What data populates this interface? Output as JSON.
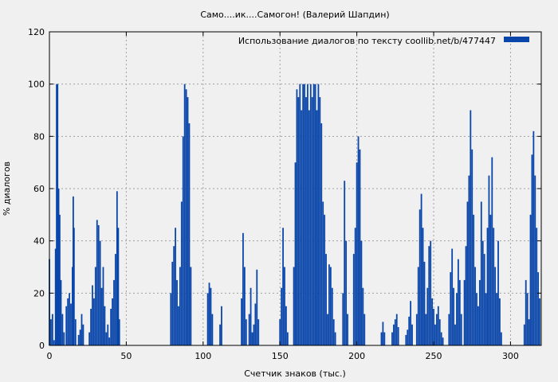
{
  "chart_data": {
    "type": "bar",
    "title": "Само....ик....Самогон! (Валерий Шапдин)",
    "xlabel": "Счетчик знаков (тыс.)",
    "ylabel": "% диалогов",
    "xlim": [
      0,
      320
    ],
    "ylim": [
      0,
      120
    ],
    "xticks": [
      0,
      50,
      100,
      150,
      200,
      250,
      300
    ],
    "yticks": [
      0,
      20,
      40,
      60,
      80,
      100,
      120
    ],
    "xtick_labels": [
      "0",
      "50",
      "100",
      "150",
      "200",
      "250",
      "300"
    ],
    "ytick_labels": [
      "0",
      "20",
      "40",
      "60",
      "80",
      "100",
      "120"
    ],
    "grid": true,
    "legend_position": "top-right",
    "series": [
      {
        "name": "Использование диалогов по тексту  coollib.net/b/477447",
        "color": "#0a46aa",
        "points": [
          [
            0,
            33
          ],
          [
            1,
            10
          ],
          [
            2,
            12
          ],
          [
            3,
            2
          ],
          [
            4,
            37
          ],
          [
            4.7,
            100
          ],
          [
            5.3,
            100
          ],
          [
            6,
            60
          ],
          [
            6.7,
            50
          ],
          [
            7.5,
            25
          ],
          [
            8.5,
            12
          ],
          [
            9.5,
            5
          ],
          [
            11,
            15
          ],
          [
            12,
            18
          ],
          [
            13,
            20
          ],
          [
            14,
            16
          ],
          [
            15,
            30
          ],
          [
            15.5,
            57
          ],
          [
            16,
            45
          ],
          [
            17,
            10
          ],
          [
            19,
            4
          ],
          [
            20,
            6
          ],
          [
            21,
            12
          ],
          [
            22,
            8
          ],
          [
            26,
            5
          ],
          [
            27,
            14
          ],
          [
            28,
            23
          ],
          [
            29,
            18
          ],
          [
            30,
            30
          ],
          [
            31,
            48
          ],
          [
            32,
            46
          ],
          [
            33,
            40
          ],
          [
            34,
            22
          ],
          [
            35,
            30
          ],
          [
            36,
            15
          ],
          [
            37,
            5
          ],
          [
            38,
            8
          ],
          [
            39,
            3
          ],
          [
            40,
            14
          ],
          [
            41,
            18
          ],
          [
            42,
            25
          ],
          [
            43,
            35
          ],
          [
            44,
            59
          ],
          [
            44.8,
            45
          ],
          [
            45.5,
            10
          ],
          [
            79,
            20
          ],
          [
            80,
            32
          ],
          [
            81,
            38
          ],
          [
            82,
            45
          ],
          [
            83,
            25
          ],
          [
            84,
            15
          ],
          [
            85,
            30
          ],
          [
            86,
            55
          ],
          [
            87,
            80
          ],
          [
            88,
            100
          ],
          [
            89,
            98
          ],
          [
            90,
            95
          ],
          [
            91,
            85
          ],
          [
            92,
            30
          ],
          [
            103,
            20
          ],
          [
            104,
            24
          ],
          [
            105,
            22
          ],
          [
            106,
            12
          ],
          [
            111,
            8
          ],
          [
            112,
            15
          ],
          [
            125,
            18
          ],
          [
            126,
            43
          ],
          [
            127,
            30
          ],
          [
            128,
            10
          ],
          [
            130,
            12
          ],
          [
            131,
            22
          ],
          [
            132,
            5
          ],
          [
            133,
            8
          ],
          [
            134,
            16
          ],
          [
            135,
            29
          ],
          [
            136,
            10
          ],
          [
            150,
            10
          ],
          [
            151,
            22
          ],
          [
            152,
            45
          ],
          [
            153,
            30
          ],
          [
            154,
            15
          ],
          [
            155,
            5
          ],
          [
            159,
            30
          ],
          [
            160,
            70
          ],
          [
            161,
            98
          ],
          [
            162,
            95
          ],
          [
            163,
            100
          ],
          [
            164,
            90
          ],
          [
            165,
            100
          ],
          [
            166,
            100
          ],
          [
            167,
            95
          ],
          [
            168,
            100
          ],
          [
            169,
            90
          ],
          [
            170,
            100
          ],
          [
            171,
            95
          ],
          [
            172,
            100
          ],
          [
            173,
            100
          ],
          [
            174,
            90
          ],
          [
            175,
            100
          ],
          [
            176,
            95
          ],
          [
            177,
            85
          ],
          [
            178,
            55
          ],
          [
            179,
            50
          ],
          [
            180,
            35
          ],
          [
            181,
            12
          ],
          [
            182,
            31
          ],
          [
            183,
            30
          ],
          [
            184,
            22
          ],
          [
            185,
            10
          ],
          [
            186,
            5
          ],
          [
            191,
            20
          ],
          [
            192,
            63
          ],
          [
            193,
            40
          ],
          [
            194,
            12
          ],
          [
            198,
            35
          ],
          [
            199,
            45
          ],
          [
            200,
            70
          ],
          [
            201,
            80
          ],
          [
            202,
            75
          ],
          [
            203,
            40
          ],
          [
            204,
            22
          ],
          [
            205,
            12
          ],
          [
            216,
            5
          ],
          [
            217,
            9
          ],
          [
            218,
            5
          ],
          [
            223,
            5
          ],
          [
            224,
            8
          ],
          [
            225,
            10
          ],
          [
            226,
            12
          ],
          [
            227,
            7
          ],
          [
            232,
            4
          ],
          [
            233,
            6
          ],
          [
            234,
            11
          ],
          [
            235,
            17
          ],
          [
            236,
            8
          ],
          [
            239,
            12
          ],
          [
            240,
            30
          ],
          [
            241,
            52
          ],
          [
            242,
            58
          ],
          [
            243,
            45
          ],
          [
            244,
            32
          ],
          [
            245,
            12
          ],
          [
            246,
            22
          ],
          [
            247,
            38
          ],
          [
            248,
            40
          ],
          [
            249,
            18
          ],
          [
            250,
            14
          ],
          [
            251,
            8
          ],
          [
            252,
            12
          ],
          [
            253,
            15
          ],
          [
            254,
            10
          ],
          [
            255,
            5
          ],
          [
            256,
            3
          ],
          [
            260,
            12
          ],
          [
            261,
            28
          ],
          [
            262,
            37
          ],
          [
            263,
            22
          ],
          [
            264,
            8
          ],
          [
            265,
            20
          ],
          [
            266,
            33
          ],
          [
            267,
            25
          ],
          [
            268,
            12
          ],
          [
            270,
            25
          ],
          [
            271,
            38
          ],
          [
            272,
            55
          ],
          [
            273,
            65
          ],
          [
            274,
            90
          ],
          [
            275,
            75
          ],
          [
            276,
            50
          ],
          [
            277,
            30
          ],
          [
            278,
            20
          ],
          [
            279,
            15
          ],
          [
            280,
            25
          ],
          [
            281,
            55
          ],
          [
            282,
            40
          ],
          [
            283,
            35
          ],
          [
            284,
            20
          ],
          [
            285,
            45
          ],
          [
            286,
            65
          ],
          [
            287,
            50
          ],
          [
            288,
            72
          ],
          [
            289,
            45
          ],
          [
            290,
            30
          ],
          [
            291,
            20
          ],
          [
            292,
            40
          ],
          [
            293,
            18
          ],
          [
            294,
            5
          ],
          [
            309,
            8
          ],
          [
            310,
            25
          ],
          [
            311,
            20
          ],
          [
            312,
            10
          ],
          [
            313,
            50
          ],
          [
            314,
            73
          ],
          [
            315,
            82
          ],
          [
            316,
            65
          ],
          [
            317,
            45
          ],
          [
            318,
            28
          ],
          [
            319,
            18
          ]
        ]
      }
    ]
  }
}
